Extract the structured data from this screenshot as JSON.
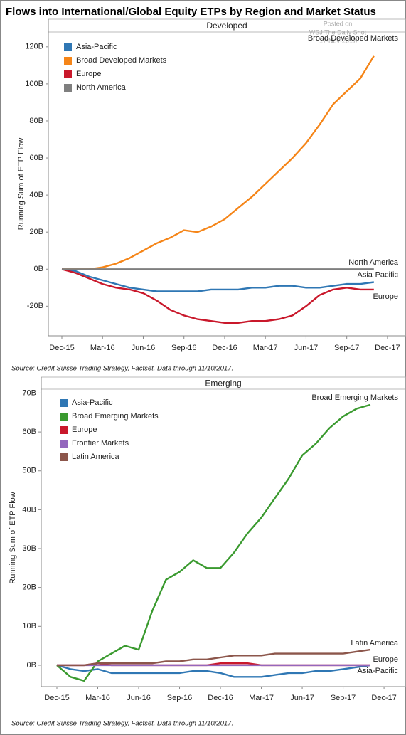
{
  "title": "Flows into International/Global Equity ETPs by Region and Market Status",
  "chart_data": [
    {
      "type": "line",
      "title": "Developed",
      "ylabel": "Running Sum of ETP Flow",
      "source": "Source: Credit Suisse Trading Strategy, Factset.  Data through 11/10/2017.",
      "watermark": [
        "Posted on",
        "WSJ The Daily Shot",
        "17-Nov-2017"
      ],
      "categories": [
        "Dec-15",
        null,
        null,
        "Mar-16",
        null,
        null,
        "Jun-16",
        null,
        null,
        "Sep-16",
        null,
        null,
        "Dec-16",
        null,
        null,
        "Mar-17",
        null,
        null,
        "Jun-17",
        null,
        null,
        "Sep-17",
        null,
        null,
        "Dec-17"
      ],
      "ylim": [
        -36,
        128
      ],
      "yticks": [
        {
          "value": -20,
          "label": "-20B"
        },
        {
          "value": 0,
          "label": "0B"
        },
        {
          "value": 20,
          "label": "20B"
        },
        {
          "value": 40,
          "label": "40B"
        },
        {
          "value": 60,
          "label": "60B"
        },
        {
          "value": 80,
          "label": "80B"
        },
        {
          "value": 100,
          "label": "100B"
        },
        {
          "value": 120,
          "label": "120B"
        }
      ],
      "grid": false,
      "legend": "upper left",
      "series": [
        {
          "name": "Asia-Pacific",
          "color": "#2f77b4",
          "values": [
            0,
            -1,
            -4,
            -6,
            -8,
            -10,
            -11,
            -12,
            -12,
            -12,
            -12,
            -11,
            -11,
            -11,
            -10,
            -10,
            -9,
            -9,
            -10,
            -10,
            -9,
            -8,
            -8,
            -7,
            null
          ]
        },
        {
          "name": "Broad Developed Markets",
          "color": "#f58518",
          "values": [
            0,
            0,
            0,
            1,
            3,
            6,
            10,
            14,
            17,
            21,
            20,
            23,
            27,
            33,
            39,
            46,
            53,
            60,
            68,
            78,
            89,
            96,
            103,
            115,
            null
          ]
        },
        {
          "name": "Europe",
          "color": "#c9182b",
          "values": [
            0,
            -2,
            -5,
            -8,
            -10,
            -11,
            -13,
            -17,
            -22,
            -25,
            -27,
            -28,
            -29,
            -29,
            -28,
            -28,
            -27,
            -25,
            -20,
            -14,
            -11,
            -10,
            -11,
            -11,
            null
          ]
        },
        {
          "name": "North America",
          "color": "#7f7f7f",
          "values": [
            0,
            0,
            0,
            0,
            0,
            0,
            0,
            0,
            0,
            0,
            0,
            0,
            0,
            0,
            0,
            0,
            0,
            0,
            0,
            0,
            0,
            0,
            0,
            0,
            null
          ]
        }
      ]
    },
    {
      "type": "line",
      "title": "Emerging",
      "ylabel": "Running Sum of ETP Flow",
      "source": "Source: Credit Suisse Trading Strategy, Factset.  Data through 11/10/2017.",
      "categories": [
        "Dec-15",
        null,
        null,
        "Mar-16",
        null,
        null,
        "Jun-16",
        null,
        null,
        "Sep-16",
        null,
        null,
        "Dec-16",
        null,
        null,
        "Mar-17",
        null,
        null,
        "Jun-17",
        null,
        null,
        "Sep-17",
        null,
        null,
        "Dec-17"
      ],
      "ylim": [
        -5.5,
        71
      ],
      "yticks": [
        {
          "value": 0,
          "label": "0B"
        },
        {
          "value": 10,
          "label": "10B"
        },
        {
          "value": 20,
          "label": "20B"
        },
        {
          "value": 30,
          "label": "30B"
        },
        {
          "value": 40,
          "label": "40B"
        },
        {
          "value": 50,
          "label": "50B"
        },
        {
          "value": 60,
          "label": "60B"
        },
        {
          "value": 70,
          "label": "70B"
        }
      ],
      "grid": false,
      "legend": "upper left",
      "series": [
        {
          "name": "Asia-Pacific",
          "color": "#2f77b4",
          "values": [
            0,
            -1,
            -1.5,
            -1,
            -2,
            -2,
            -2,
            -2,
            -2,
            -2,
            -1.5,
            -1.5,
            -2,
            -3,
            -3,
            -3,
            -2.5,
            -2,
            -2,
            -1.5,
            -1.5,
            -1,
            -0.5,
            0,
            null
          ]
        },
        {
          "name": "Broad Emerging Markets",
          "color": "#3a9a2f",
          "values": [
            0,
            -3,
            -4,
            1,
            3,
            5,
            4,
            14,
            22,
            24,
            27,
            25,
            25,
            29,
            34,
            38,
            43,
            48,
            54,
            57,
            61,
            64,
            66,
            67,
            null
          ]
        },
        {
          "name": "Europe",
          "color": "#c9182b",
          "values": [
            0,
            0,
            0,
            0.5,
            0,
            0,
            0,
            0,
            0,
            0,
            0,
            0,
            0.5,
            0.5,
            0.5,
            0,
            0,
            0,
            0,
            0,
            0,
            0,
            0,
            0,
            null
          ]
        },
        {
          "name": "Frontier Markets",
          "color": "#9467bd",
          "values": [
            0,
            0,
            0,
            0,
            0,
            0,
            0,
            0,
            0,
            0,
            0,
            0,
            0,
            0,
            0,
            0,
            0,
            0,
            0,
            0,
            0,
            0,
            0,
            0,
            null
          ]
        },
        {
          "name": "Latin America",
          "color": "#8c564b",
          "values": [
            0,
            0,
            0,
            0.5,
            0.5,
            0.5,
            0.5,
            0.5,
            1,
            1,
            1.5,
            1.5,
            2,
            2.5,
            2.5,
            2.5,
            3,
            3,
            3,
            3,
            3,
            3,
            3.5,
            4,
            null
          ]
        }
      ]
    }
  ]
}
